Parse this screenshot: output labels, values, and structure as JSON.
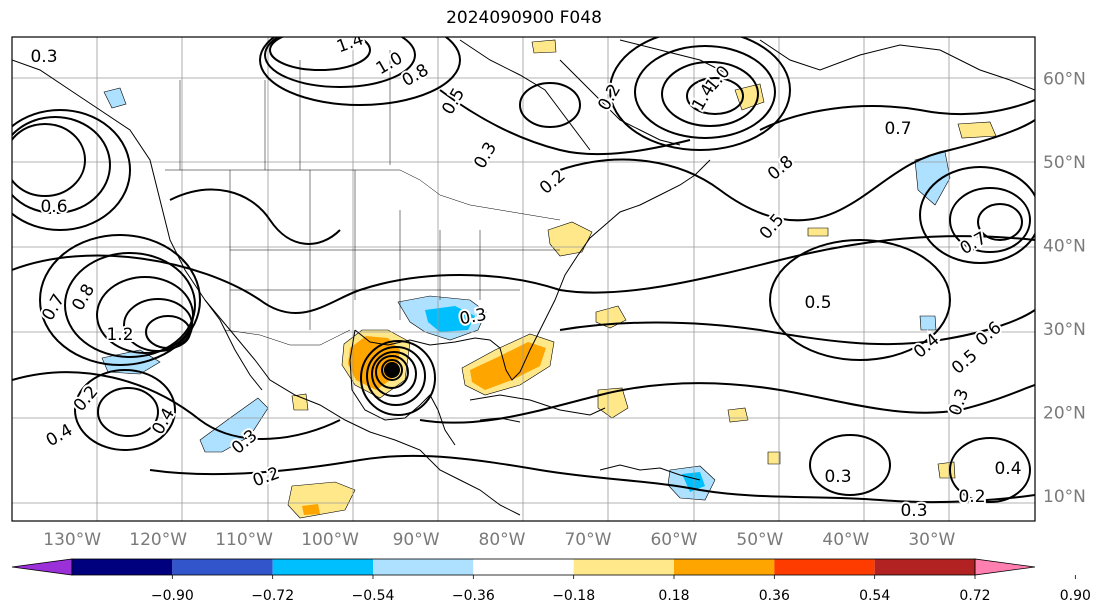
{
  "title": "2024090900 F048",
  "map": {
    "lon_labels": [
      "130°W",
      "120°W",
      "110°W",
      "100°W",
      "90°W",
      "80°W",
      "70°W",
      "60°W",
      "50°W",
      "40°W",
      "30°W"
    ],
    "lat_labels": [
      "60°N",
      "50°N",
      "40°N",
      "30°N",
      "20°N",
      "10°N"
    ],
    "extent": {
      "lon_min": -137,
      "lon_max": -18,
      "lat_min": 7,
      "lat_max": 65
    },
    "contour_labels": [
      "0.3",
      "1.4",
      "1.0",
      "0.8",
      "0.5",
      "0.2",
      "1.0",
      "1.4",
      "0.3",
      "0.7",
      "0.8",
      "0.6",
      "0.7",
      "0.4",
      "0.8",
      "0.5",
      "0.3",
      "1.2",
      "0.2",
      "0.4",
      "0.3",
      "0.2",
      "0.2",
      "0.5",
      "0.6",
      "0.5",
      "0.4",
      "0.3",
      "0.3",
      "0.4",
      "0.2",
      "0.3",
      "0.7"
    ],
    "colors": {
      "coast": "#000000",
      "grid": "#999999",
      "axis_label": "#7a7a7a"
    }
  },
  "colorbar": {
    "tick_labels": [
      "−0.90",
      "−0.72",
      "−0.54",
      "−0.36",
      "−0.18",
      "0.18",
      "0.36",
      "0.54",
      "0.72",
      "0.90"
    ],
    "bins": [
      "#9b30d9",
      "#00007f",
      "#3355cc",
      "#00bfff",
      "#aee1ff",
      "#ffffff",
      "#ffe88a",
      "#ffa500",
      "#ff3c00",
      "#b22222",
      "#ff80b0"
    ]
  }
}
